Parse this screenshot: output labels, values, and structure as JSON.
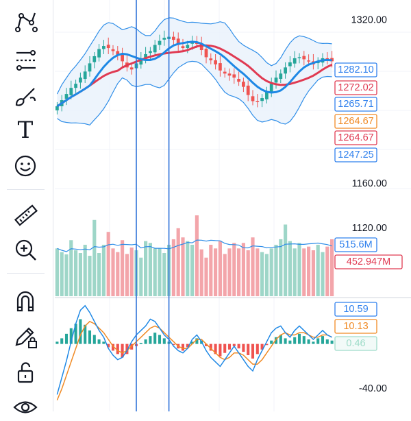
{
  "toolbar": {
    "tools": [
      {
        "name": "trend-line-tool-icon"
      },
      {
        "name": "fib-retracement-tool-icon"
      },
      {
        "name": "brush-tool-icon"
      },
      {
        "name": "text-tool-icon",
        "glyph": "T"
      },
      {
        "name": "emoji-tool-icon"
      },
      {
        "name": "ruler-tool-icon"
      },
      {
        "name": "zoom-in-tool-icon"
      },
      {
        "name": "magnet-tool-icon"
      },
      {
        "name": "lock-drawings-icon"
      },
      {
        "name": "unlock-icon"
      },
      {
        "name": "eye-icon"
      }
    ]
  },
  "chart_data": [
    {
      "type": "candlestick",
      "pane": "price",
      "overlays": [
        "bollinger-bands",
        "moving-average-fast",
        "moving-average-slow"
      ],
      "ylim": [
        1140,
        1340
      ],
      "y_ticks": [
        1320.0,
        1160.0
      ],
      "y_tick_labels": [
        "1320.00",
        "1160.00"
      ],
      "price_labels": [
        {
          "text": "1282.10",
          "value": 1282.1,
          "color": "#2f80ed"
        },
        {
          "text": "1272.02",
          "value": 1272.02,
          "color": "#e03a52"
        },
        {
          "text": "1265.71",
          "value": 1265.71,
          "color": "#2f80ed"
        },
        {
          "text": "1264.67",
          "value": 1264.67,
          "color": "#f08a24"
        },
        {
          "text": "1264.67",
          "value": 1264.67,
          "color": "#e03a52"
        },
        {
          "text": "1247.25",
          "value": 1247.25,
          "color": "#2f80ed"
        }
      ],
      "close": [
        1236,
        1242,
        1248,
        1254,
        1258,
        1264,
        1270,
        1278,
        1285,
        1292,
        1295,
        1293,
        1290,
        1286,
        1280,
        1274,
        1272,
        1278,
        1283,
        1287,
        1290,
        1296,
        1300,
        1303,
        1304,
        1301,
        1296,
        1293,
        1296,
        1300,
        1297,
        1291,
        1284,
        1281,
        1277,
        1271,
        1268,
        1266,
        1264,
        1260,
        1255,
        1247,
        1241,
        1240,
        1244,
        1250,
        1258,
        1264,
        1268,
        1274,
        1279,
        1283,
        1284,
        1282,
        1280,
        1277,
        1280,
        1283,
        1282,
        1280
      ],
      "colors": {
        "up": "#26a69a",
        "down": "#ef5350",
        "bb_line": "#2f8ee8",
        "bb_fill": "#e8f1fb",
        "ma_fast": "#1e88e5",
        "ma_slow": "#e03a52"
      }
    },
    {
      "type": "bar",
      "pane": "volume",
      "ylim": [
        0,
        1000
      ],
      "y_ticks": [
        1120.0
      ],
      "y_tick_labels": [
        "1120.00"
      ],
      "values": [
        520,
        480,
        455,
        610,
        500,
        470,
        560,
        440,
        830,
        470,
        560,
        700,
        520,
        480,
        610,
        460,
        530,
        500,
        420,
        600,
        580,
        520,
        520,
        470,
        560,
        620,
        740,
        640,
        600,
        560,
        880,
        510,
        420,
        560,
        520,
        600,
        460,
        520,
        580,
        520,
        580,
        500,
        640,
        520,
        480,
        460,
        520,
        560,
        620,
        780,
        600,
        520,
        580,
        520,
        540,
        500,
        560,
        480,
        540,
        620
      ],
      "volume_ma_labels": [
        {
          "text": "515.6M",
          "value": 515.6,
          "color": "#2f80ed"
        },
        {
          "text": "452.947M",
          "value": 452.947,
          "color": "#e03a52"
        }
      ]
    },
    {
      "type": "histogram",
      "pane": "oscillator",
      "ylim": [
        -60,
        40
      ],
      "y_ticks": [
        -40.0
      ],
      "y_tick_labels": [
        "-40.00"
      ],
      "histogram": [
        2,
        5,
        9,
        14,
        18,
        22,
        17,
        12,
        8,
        4,
        2,
        -3,
        -6,
        -9,
        -12,
        -9,
        -5,
        -2,
        1,
        4,
        7,
        10,
        8,
        5,
        2,
        -1,
        -4,
        -6,
        -3,
        2,
        5,
        3,
        -2,
        -6,
        -9,
        -11,
        -8,
        -5,
        -2,
        -4,
        -7,
        -10,
        -13,
        -9,
        -5,
        -1,
        3,
        6,
        8,
        5,
        3,
        6,
        9,
        7,
        4,
        2,
        5,
        7,
        4,
        3
      ],
      "line_fast": [
        -45,
        -30,
        -15,
        2,
        18,
        30,
        34,
        28,
        20,
        12,
        6,
        -4,
        -10,
        -14,
        -12,
        -6,
        2,
        8,
        12,
        16,
        22,
        20,
        14,
        8,
        4,
        -2,
        -6,
        -8,
        -4,
        4,
        8,
        2,
        -6,
        -12,
        -16,
        -20,
        -14,
        -8,
        -2,
        -8,
        -14,
        -20,
        -24,
        -14,
        -6,
        2,
        10,
        14,
        16,
        10,
        6,
        12,
        16,
        12,
        8,
        4,
        8,
        12,
        8,
        6
      ],
      "line_slow": [
        -50,
        -40,
        -28,
        -16,
        -4,
        8,
        16,
        20,
        18,
        14,
        10,
        4,
        -2,
        -6,
        -8,
        -6,
        -2,
        2,
        6,
        10,
        14,
        16,
        14,
        10,
        6,
        2,
        -2,
        -4,
        -4,
        0,
        4,
        4,
        0,
        -4,
        -8,
        -12,
        -14,
        -12,
        -8,
        -8,
        -10,
        -14,
        -18,
        -18,
        -14,
        -8,
        -2,
        4,
        8,
        10,
        8,
        8,
        10,
        10,
        8,
        6,
        6,
        8,
        8,
        6
      ],
      "labels": [
        {
          "text": "10.59",
          "value": 10.59,
          "color": "#2f80ed"
        },
        {
          "text": "10.13",
          "value": 10.13,
          "color": "#f08a24"
        },
        {
          "text": "0.46",
          "value": 0.46,
          "color": "#9fdcc9"
        }
      ],
      "colors": {
        "pos": "#26a69a",
        "neg": "#ef5350",
        "fast": "#1e88e5",
        "slow": "#f08a24"
      }
    }
  ],
  "crosshair_lines": {
    "x_index": [
      17,
      24
    ],
    "color": "#2f73d9"
  }
}
